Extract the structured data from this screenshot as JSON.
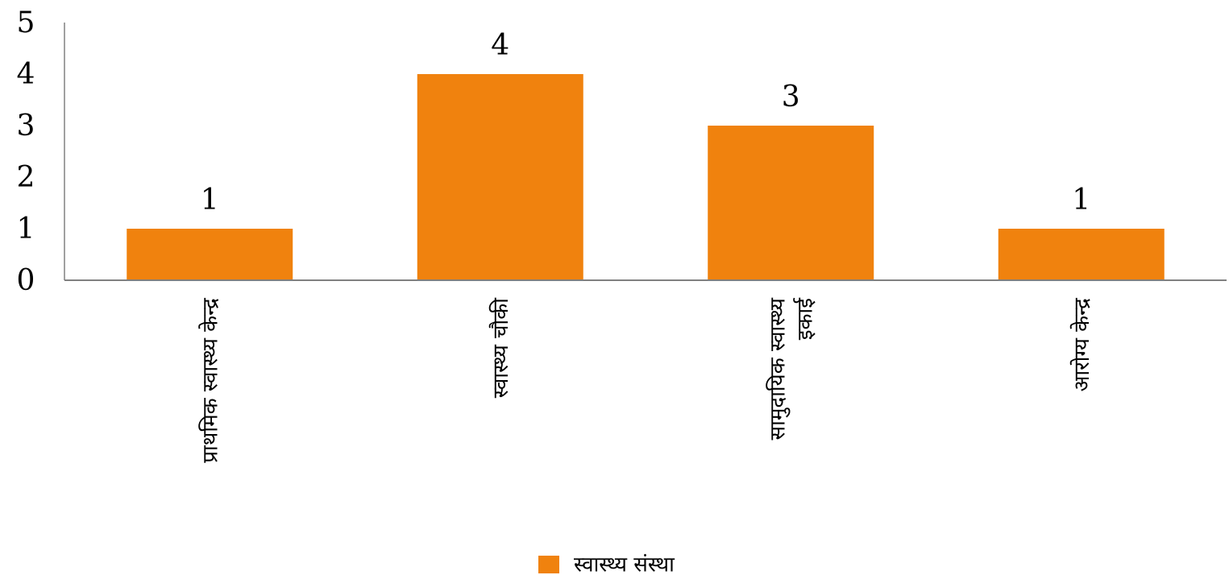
{
  "chart_data": {
    "type": "bar",
    "categories": [
      "प्राथमिक स्वास्थ्य केन्द्र",
      "स्वास्थ्य चौकी",
      "सामुदायिक स्वास्थ्य इकाई",
      "आरोग्य केन्द्र"
    ],
    "category_lines": [
      [
        "प्राथमिक स्वास्थ्य केन्द्र"
      ],
      [
        "स्वास्थ्य चौकी"
      ],
      [
        "सामुदायिक स्वास्थ्य",
        "इकाई"
      ],
      [
        "आरोग्य केन्द्र"
      ]
    ],
    "series": [
      {
        "name": "स्वास्थ्य संस्था",
        "values": [
          1,
          4,
          3,
          1
        ],
        "color": "#F0820E"
      }
    ],
    "data_labels": [
      "1",
      "4",
      "3",
      "1"
    ],
    "y_ticks": [
      "0",
      "1",
      "2",
      "3",
      "4",
      "5"
    ],
    "ylim": [
      0,
      5
    ],
    "title": "",
    "xlabel": "",
    "ylabel": "",
    "grid": false,
    "legend": "bottom-center",
    "axis_color": "#808080"
  }
}
